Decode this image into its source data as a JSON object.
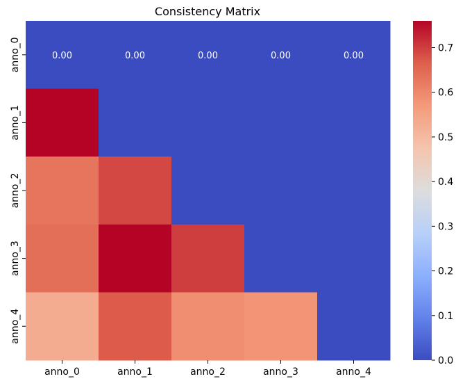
{
  "chart_data": {
    "type": "heatmap",
    "title": "Consistency Matrix",
    "xlabel": "",
    "ylabel": "",
    "x_categories": [
      "anno_0",
      "anno_1",
      "anno_2",
      "anno_3",
      "anno_4"
    ],
    "y_categories": [
      "anno_0",
      "anno_1",
      "anno_2",
      "anno_3",
      "anno_4"
    ],
    "values": [
      [
        0.0,
        0.0,
        0.0,
        0.0,
        0.0
      ],
      [
        0.76,
        0.0,
        0.0,
        0.0,
        0.0
      ],
      [
        0.63,
        0.69,
        0.0,
        0.0,
        0.0
      ],
      [
        0.64,
        0.76,
        0.7,
        0.0,
        0.0
      ],
      [
        0.53,
        0.67,
        0.59,
        0.58,
        0.0
      ]
    ],
    "annotations": [
      [
        "0.00",
        "0.00",
        "0.00",
        "0.00",
        "0.00"
      ],
      [
        "",
        "",
        "",
        "",
        ""
      ],
      [
        "",
        "",
        "",
        "",
        ""
      ],
      [
        "",
        "",
        "",
        "",
        ""
      ],
      [
        "",
        "",
        "",
        "",
        ""
      ]
    ],
    "colormap": "coolwarm",
    "vmin": 0.0,
    "vmax": 0.76,
    "colorbar_ticks": [
      "0.0",
      "0.1",
      "0.2",
      "0.3",
      "0.4",
      "0.5",
      "0.6",
      "0.7"
    ],
    "colorbar_tick_values": [
      0.0,
      0.1,
      0.2,
      0.3,
      0.4,
      0.5,
      0.6,
      0.7
    ],
    "annotation_color": "#ffffff",
    "grid": false
  }
}
